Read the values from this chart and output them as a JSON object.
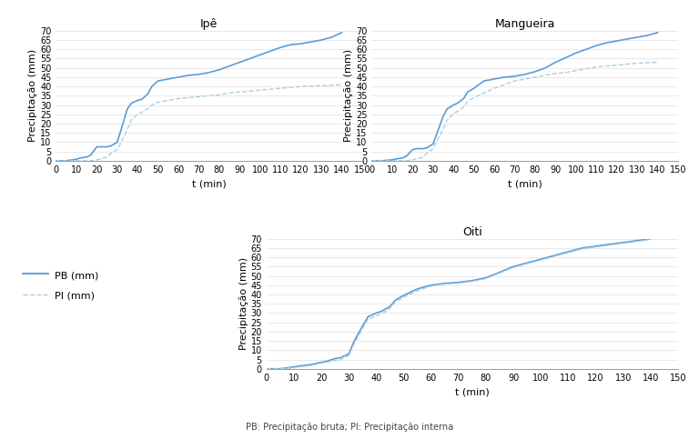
{
  "titles": [
    "Ipê",
    "Mangueira",
    "Oiti"
  ],
  "xlabel": "t (min)",
  "ylabel": "Precipitação (mm)",
  "line_color_PB": "#5B9BD5",
  "line_color_PI": "#AECDE0",
  "legend_PB": "PB (mm)",
  "legend_PI": "PI (mm)",
  "footer": "PB: Precipitação bruta; PI: Precipitação interna",
  "t": [
    0,
    5,
    10,
    12,
    15,
    17,
    20,
    22,
    25,
    27,
    30,
    32,
    35,
    37,
    40,
    42,
    45,
    47,
    50,
    55,
    60,
    65,
    70,
    75,
    80,
    85,
    90,
    95,
    100,
    105,
    110,
    115,
    120,
    125,
    130,
    135,
    140
  ],
  "ipe_PB": [
    0,
    0,
    0.8,
    1.5,
    2.0,
    3.0,
    7.5,
    7.5,
    7.5,
    8.0,
    10.0,
    17.0,
    28.0,
    31.0,
    32.5,
    33.0,
    36.0,
    40.0,
    43.0,
    44.0,
    45.0,
    46.0,
    46.5,
    47.5,
    49.0,
    51.0,
    53.0,
    55.0,
    57.0,
    59.0,
    61.0,
    62.5,
    63.0,
    64.0,
    65.0,
    66.5,
    69.0
  ],
  "ipe_PI": [
    0,
    0,
    0,
    0,
    0,
    0,
    0.5,
    1.0,
    2.0,
    4.0,
    6.0,
    10.0,
    17.0,
    22.0,
    25.0,
    26.0,
    28.0,
    30.0,
    31.5,
    32.5,
    33.5,
    34.0,
    34.5,
    35.0,
    35.5,
    36.5,
    37.0,
    37.5,
    38.0,
    38.5,
    39.0,
    39.5,
    40.0,
    40.2,
    40.4,
    40.6,
    41.0
  ],
  "mangueira_PB": [
    0,
    0,
    0.5,
    1.0,
    1.5,
    2.5,
    6.0,
    6.5,
    6.5,
    7.0,
    9.0,
    15.0,
    24.0,
    28.0,
    30.0,
    31.0,
    33.5,
    37.0,
    39.0,
    43.0,
    44.0,
    45.0,
    45.5,
    46.5,
    48.0,
    50.0,
    53.0,
    55.5,
    58.0,
    60.0,
    62.0,
    63.5,
    64.5,
    65.5,
    66.5,
    67.5,
    69.0
  ],
  "mangueira_PI": [
    0,
    0,
    0,
    0,
    0,
    0,
    0.5,
    1.0,
    2.0,
    4.0,
    6.5,
    11.0,
    17.0,
    22.0,
    25.5,
    26.5,
    29.0,
    32.0,
    34.0,
    36.5,
    39.0,
    41.0,
    43.0,
    44.0,
    45.0,
    46.0,
    47.0,
    47.5,
    48.5,
    49.5,
    50.5,
    51.0,
    51.5,
    52.0,
    52.5,
    52.8,
    53.0
  ],
  "oiti_PB": [
    0,
    0,
    1.0,
    1.5,
    2.0,
    2.5,
    3.5,
    4.0,
    5.5,
    6.0,
    8.0,
    15.0,
    23.0,
    28.0,
    30.0,
    31.0,
    33.5,
    37.0,
    39.5,
    43.0,
    45.0,
    46.0,
    46.5,
    47.5,
    49.0,
    52.0,
    55.0,
    57.0,
    59.0,
    61.0,
    63.0,
    65.0,
    66.0,
    67.0,
    68.0,
    69.0,
    70.0
  ],
  "oiti_PI": [
    0,
    0,
    0.5,
    1.0,
    1.5,
    2.0,
    3.0,
    3.5,
    4.5,
    5.0,
    7.0,
    13.5,
    21.5,
    26.5,
    28.5,
    29.5,
    32.5,
    36.0,
    38.5,
    42.0,
    44.5,
    45.5,
    46.0,
    47.0,
    48.5,
    51.5,
    54.5,
    56.5,
    58.5,
    60.5,
    62.5,
    64.5,
    65.5,
    66.5,
    67.5,
    68.5,
    69.5
  ],
  "ylim": [
    0,
    70
  ],
  "yticks": [
    0,
    5,
    10,
    15,
    20,
    25,
    30,
    35,
    40,
    45,
    50,
    55,
    60,
    65,
    70
  ],
  "xticks": [
    0,
    10,
    20,
    30,
    40,
    50,
    60,
    70,
    80,
    90,
    100,
    110,
    120,
    130,
    140,
    150
  ],
  "xlim": [
    0,
    150
  ]
}
